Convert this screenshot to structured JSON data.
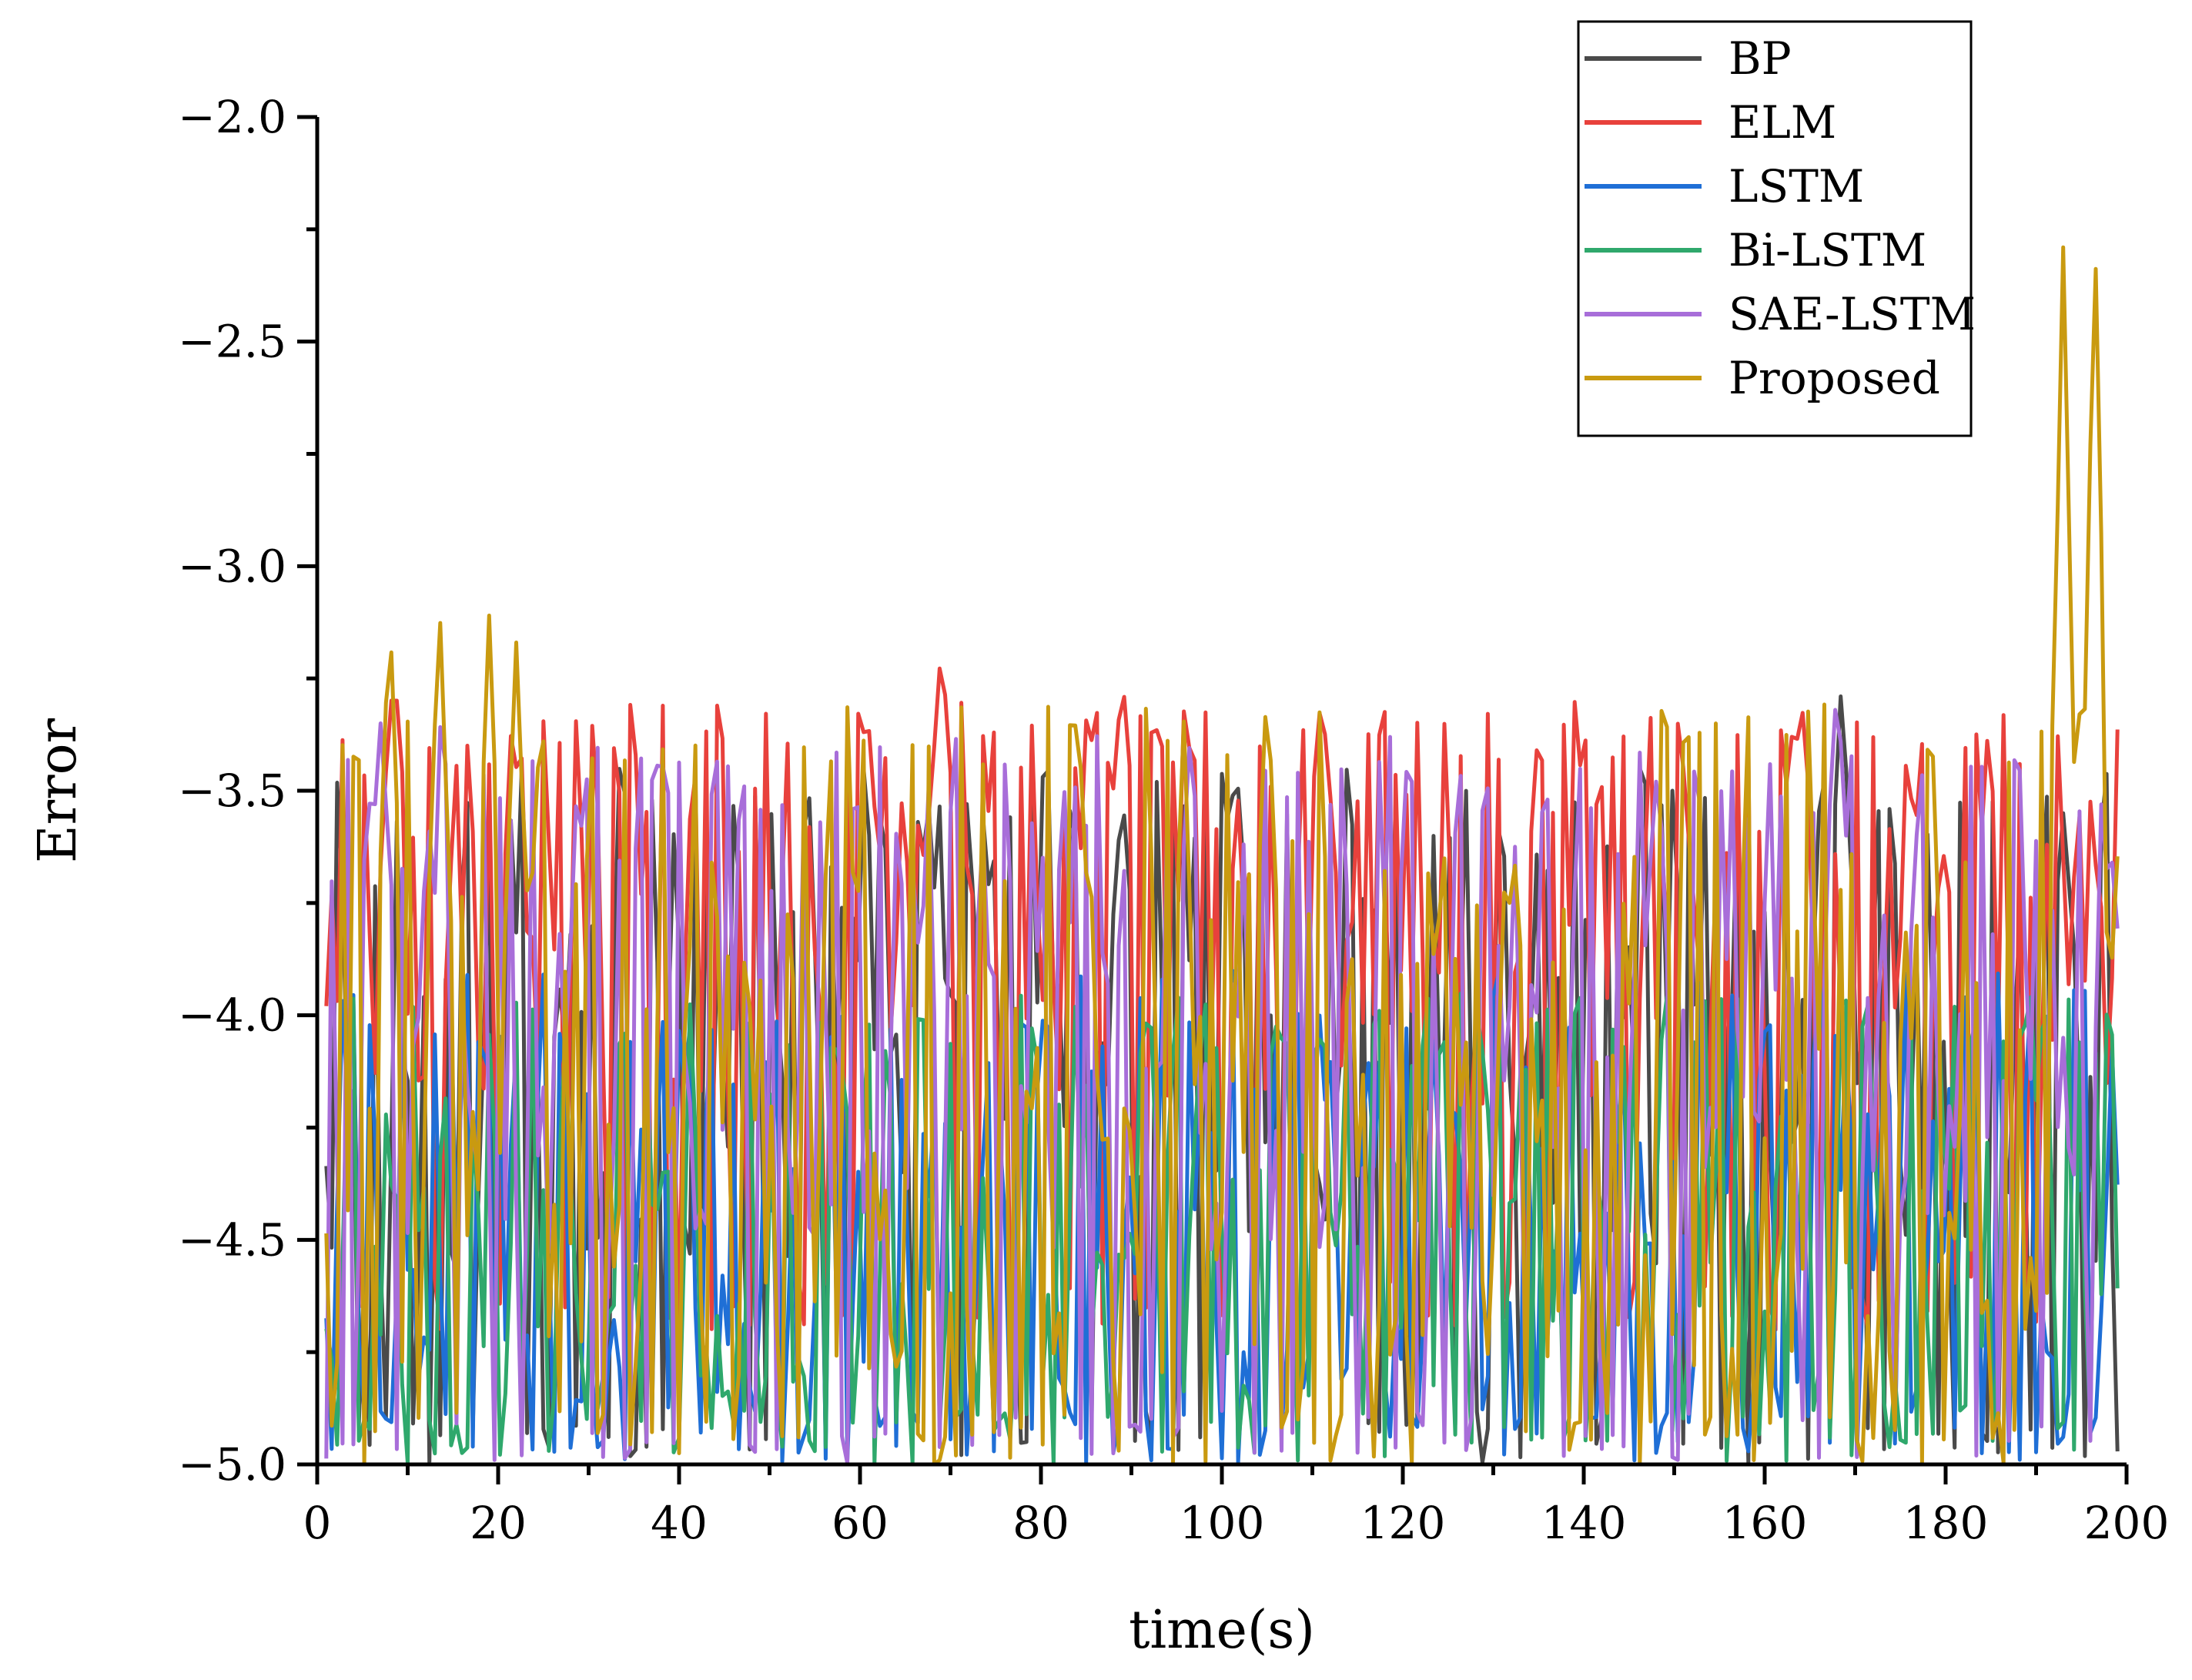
{
  "chart_data": {
    "type": "line",
    "title": "",
    "xlabel": "time(s)",
    "ylabel": "Error",
    "xlim": [
      0,
      200
    ],
    "ylim": [
      -5.0,
      -2.0
    ],
    "x_ticks": [
      0,
      20,
      40,
      60,
      80,
      100,
      120,
      140,
      160,
      180,
      200
    ],
    "x_tick_labels": [
      "0",
      "20",
      "40",
      "60",
      "80",
      "100",
      "120",
      "140",
      "160",
      "180",
      "200"
    ],
    "y_ticks": [
      -5.0,
      -4.5,
      -4.0,
      -3.5,
      -3.0,
      -2.5,
      -2.0
    ],
    "y_tick_labels": [
      "−5.0",
      "−4.5",
      "−4.0",
      "−3.5",
      "−3.0",
      "−2.5",
      "−2.0"
    ],
    "grid": false,
    "legend_position": "top-right",
    "series": [
      {
        "name": "BP",
        "color": "#4a4a4a",
        "seed": 11,
        "base": -4.05,
        "amp": 0.55,
        "floor": -5.0,
        "ceil": -3.45,
        "peaks": [
          [
            168.5,
            -3.25
          ],
          [
            89,
            -3.5
          ],
          [
            193,
            -3.55
          ]
        ]
      },
      {
        "name": "ELM",
        "color": "#e8413c",
        "seed": 23,
        "base": -3.75,
        "amp": 0.45,
        "floor": -4.7,
        "ceil": -3.3,
        "peaks": [
          [
            8.5,
            -3.22
          ],
          [
            69,
            -3.17
          ],
          [
            89,
            -3.24
          ],
          [
            111,
            -3.28
          ]
        ]
      },
      {
        "name": "LSTM",
        "color": "#1f6fd6",
        "seed": 37,
        "base": -4.45,
        "amp": 0.45,
        "floor": -5.0,
        "ceil": -3.9,
        "peaks": []
      },
      {
        "name": "Bi-LSTM",
        "color": "#2fa86c",
        "seed": 41,
        "base": -4.45,
        "amp": 0.5,
        "floor": -5.0,
        "ceil": -3.95,
        "peaks": []
      },
      {
        "name": "SAE-LSTM",
        "color": "#a86ed9",
        "seed": 53,
        "base": -3.95,
        "amp": 0.6,
        "floor": -5.0,
        "ceil": -3.4,
        "peaks": [
          [
            168,
            -3.25
          ],
          [
            7,
            -3.35
          ]
        ]
      },
      {
        "name": "Proposed",
        "color": "#c99a10",
        "seed": 67,
        "base": -4.2,
        "amp": 0.6,
        "floor": -5.0,
        "ceil": -3.3,
        "peaks": [
          [
            8,
            -3.08
          ],
          [
            13.5,
            -3.07
          ],
          [
            19,
            -3.11
          ],
          [
            22,
            -3.17
          ],
          [
            105,
            -3.24
          ],
          [
            193,
            -2.29
          ],
          [
            196.5,
            -2.24
          ]
        ]
      }
    ]
  }
}
